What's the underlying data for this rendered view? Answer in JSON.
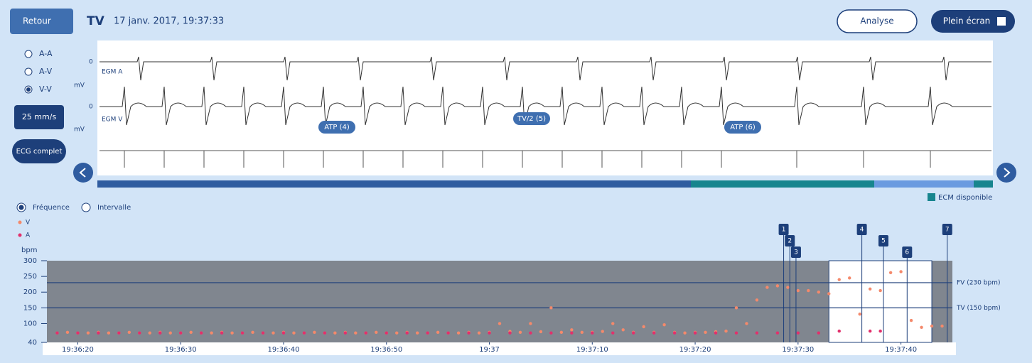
{
  "header": {
    "back": "Retour",
    "title": "TV",
    "datetime": "17 janv. 2017, 19:37:33",
    "analyse": "Analyse",
    "fullscreen": "Plein écran"
  },
  "sidebar": {
    "channels": [
      "A-A",
      "A-V",
      "V-V"
    ],
    "selected": 2,
    "speed": "25 mm/s",
    "ecg": "ECG complet"
  },
  "egm": {
    "channels": [
      {
        "label": "EGM A"
      },
      {
        "label": "EGM V"
      }
    ],
    "units": "mV",
    "zero": "0",
    "therapies": [
      {
        "label": "ATP (4)"
      },
      {
        "label": "TV/2 (5)"
      },
      {
        "label": "ATP (6)"
      }
    ],
    "availability_legend": "ECM disponible"
  },
  "rate_view": {
    "options": [
      "Fréquence",
      "Intervalle"
    ],
    "selected": 0
  },
  "chart_data": {
    "type": "scatter",
    "y_label": "bpm",
    "xlim": [
      "19:36:17",
      "19:37:45"
    ],
    "xticks": [
      "19:36:20",
      "19:36:30",
      "19:36:40",
      "19:36:50",
      {
        "value": "19:37:00",
        "label": "19:37"
      },
      "19:37:10",
      "19:37:20",
      "19:37:30",
      "19:37:40"
    ],
    "ylim": [
      40,
      300
    ],
    "yticks": [
      40,
      100,
      150,
      200,
      250,
      300
    ],
    "highlight": [
      "19:37:33",
      "19:37:43"
    ],
    "thresholds": [
      {
        "label": "FV (230 bpm)",
        "value": 230
      },
      {
        "label": "TV (150 bpm)",
        "value": 150
      }
    ],
    "events": [
      {
        "label": "1",
        "x": "19:37:28.6"
      },
      {
        "label": "2",
        "x": "19:37:29.2"
      },
      {
        "label": "3",
        "x": "19:37:29.8"
      },
      {
        "label": "4",
        "x": "19:37:36.2"
      },
      {
        "label": "5",
        "x": "19:37:38.3"
      },
      {
        "label": "6",
        "x": "19:37:40.6"
      },
      {
        "label": "7",
        "x": "19:37:44.5"
      }
    ],
    "series": [
      {
        "name": "V",
        "color": "#f4896b",
        "x": [
          "19:36:18",
          "19:36:19",
          "19:36:20",
          "19:36:21",
          "19:36:22",
          "19:36:23",
          "19:36:24",
          "19:36:25",
          "19:36:26",
          "19:36:27",
          "19:36:28",
          "19:36:29",
          "19:36:30",
          "19:36:31",
          "19:36:32",
          "19:36:33",
          "19:36:34",
          "19:36:35",
          "19:36:36",
          "19:36:37",
          "19:36:38",
          "19:36:39",
          "19:36:40",
          "19:36:41",
          "19:36:42",
          "19:36:43",
          "19:36:44",
          "19:36:45",
          "19:36:46",
          "19:36:47",
          "19:36:48",
          "19:36:49",
          "19:36:50",
          "19:36:51",
          "19:36:52",
          "19:36:53",
          "19:36:54",
          "19:36:55",
          "19:36:56",
          "19:36:57",
          "19:36:58",
          "19:36:59",
          "19:37:00",
          "19:37:01",
          "19:37:02",
          "19:37:03",
          "19:37:04",
          "19:37:05",
          "19:37:06",
          "19:37:07",
          "19:37:08",
          "19:37:09",
          "19:37:10",
          "19:37:11",
          "19:37:12",
          "19:37:13",
          "19:37:14",
          "19:37:15",
          "19:37:16",
          "19:37:17",
          "19:37:18",
          "19:37:19",
          "19:37:20",
          "19:37:21",
          "19:37:22",
          "19:37:23",
          "19:37:24",
          "19:37:25",
          "19:37:26",
          "19:37:27",
          "19:37:28",
          "19:37:29",
          "19:37:30",
          "19:37:31",
          "19:37:32",
          "19:37:33",
          "19:37:34",
          "19:37:35",
          "19:37:36",
          "19:37:37",
          "19:37:38",
          "19:37:39",
          "19:37:40",
          "19:37:41",
          "19:37:42",
          "19:37:43",
          "19:37:44"
        ],
        "values": [
          70,
          72,
          70,
          70,
          72,
          70,
          70,
          72,
          70,
          70,
          72,
          70,
          70,
          72,
          70,
          70,
          72,
          70,
          70,
          72,
          70,
          70,
          72,
          70,
          70,
          72,
          70,
          70,
          72,
          70,
          70,
          72,
          70,
          70,
          72,
          70,
          70,
          72,
          70,
          70,
          72,
          70,
          72,
          100,
          75,
          72,
          100,
          74,
          150,
          72,
          80,
          72,
          72,
          75,
          100,
          80,
          72,
          90,
          72,
          96,
          72,
          70,
          72,
          72,
          74,
          76,
          150,
          100,
          175,
          215,
          220,
          215,
          205,
          205,
          200,
          195,
          240,
          245,
          130,
          210,
          205,
          262,
          265,
          110,
          88,
          92,
          92
        ]
      },
      {
        "name": "A",
        "color": "#e2306c",
        "x": [
          "19:36:18",
          "19:36:20",
          "19:36:22",
          "19:36:24",
          "19:36:26",
          "19:36:28",
          "19:36:30",
          "19:36:32",
          "19:36:34",
          "19:36:36",
          "19:36:38",
          "19:36:40",
          "19:36:42",
          "19:36:44",
          "19:36:46",
          "19:36:48",
          "19:36:50",
          "19:36:52",
          "19:36:54",
          "19:36:56",
          "19:36:58",
          "19:37:00",
          "19:37:02",
          "19:37:04",
          "19:37:06",
          "19:37:08",
          "19:37:10",
          "19:37:12",
          "19:37:14",
          "19:37:16",
          "19:37:18",
          "19:37:20",
          "19:37:22",
          "19:37:24",
          "19:37:26",
          "19:37:28",
          "19:37:30",
          "19:37:32",
          "19:37:34",
          "19:37:37",
          "19:37:38"
        ],
        "values": [
          70,
          70,
          70,
          70,
          70,
          70,
          70,
          70,
          70,
          70,
          70,
          70,
          70,
          70,
          70,
          70,
          70,
          70,
          70,
          70,
          70,
          70,
          70,
          70,
          70,
          70,
          70,
          70,
          70,
          70,
          70,
          70,
          70,
          70,
          70,
          70,
          70,
          70,
          76,
          76,
          76
        ]
      }
    ]
  }
}
